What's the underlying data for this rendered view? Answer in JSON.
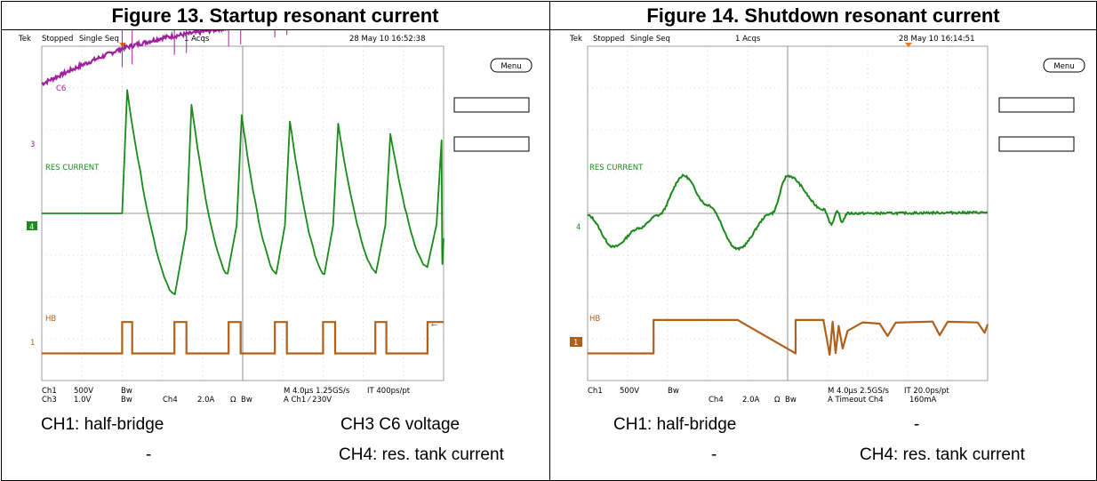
{
  "figures": [
    {
      "title": "Figure 13. Startup resonant current",
      "scope": {
        "brand": "Tek",
        "status": "Stopped",
        "mode": "Single Seq",
        "acqs": "1 Acqs",
        "datetime": "28 May 10 16:52:38",
        "menu_label": "Menu",
        "ch3_label": "C6",
        "ch4_label": "RES CURRENT",
        "ch1_label": "HB",
        "marker_ch3": "3",
        "marker_ch4": "4",
        "marker_ch1": "1",
        "readout": {
          "ch1": "Ch1",
          "ch1_scale": "500V",
          "ch1_bw": "Bw",
          "ch3": "Ch3",
          "ch3_scale": "1.0V",
          "ch3_bw": "Bw",
          "ch4": "Ch4",
          "ch4_scale": "2.0A",
          "ch4_unit": "Ω",
          "ch4_bw": "Bw",
          "timebase": "M 4.0µs 1.25GS/s",
          "interp": "IT 400ps/pt",
          "trigger": "A  Ch1  ⁄  230V"
        }
      },
      "captions": {
        "left_top": "CH1: half-bridge",
        "right_top": "CH3 C6 voltage",
        "left_bottom": "-",
        "right_bottom": "CH4: res. tank current"
      }
    },
    {
      "title": "Figure 14. Shutdown resonant current",
      "scope": {
        "brand": "Tek",
        "status": "Stopped",
        "mode": "Single Seq",
        "acqs": "1 Acqs",
        "datetime": "28 May 10 16:14:51",
        "menu_label": "Menu",
        "ch4_label": "RES CURRENT",
        "ch1_label": "HB",
        "marker_ch4": "4",
        "marker_ch1": "1",
        "readout": {
          "ch1": "Ch1",
          "ch1_scale": "500V",
          "ch1_bw": "Bw",
          "ch4": "Ch4",
          "ch4_scale": "2.0A",
          "ch4_unit": "Ω",
          "ch4_bw": "Bw",
          "timebase": "M 4.0µs 2.5GS/s",
          "interp": "IT 20.0ps/pt",
          "trigger": "A  Timeout  Ch4",
          "trigger_level": "160mA"
        }
      },
      "captions": {
        "left_top": "CH1: half-bridge",
        "right_top": "-",
        "left_bottom": "-",
        "right_bottom": "CH4: res. tank current"
      }
    }
  ],
  "chart_data": [
    {
      "type": "line",
      "title": "Figure 13. Startup resonant current",
      "x_unit": "µs",
      "xlim": [
        0,
        40
      ],
      "x_divisions": 10,
      "y_divisions": 8,
      "grid": true,
      "series": [
        {
          "name": "C6",
          "color": "#a020a0",
          "x": [
            0,
            4,
            8,
            12,
            16,
            20,
            24,
            28,
            32,
            36,
            40
          ],
          "y_div": [
            3.1,
            3.55,
            3.95,
            4.2,
            4.35,
            4.5,
            4.7,
            4.85,
            5.0,
            5.1,
            5.2
          ]
        },
        {
          "name": "RES CURRENT",
          "color": "#1a8a1a",
          "pulse_times": [
            8.0,
            14.4,
            19.4,
            24.2,
            29.0,
            34.2,
            39.3
          ],
          "peaks_div": [
            2.95,
            2.6,
            2.35,
            2.2,
            2.15,
            1.9,
            1.75
          ],
          "troughs_div": [
            -1.95,
            -1.45,
            -1.45,
            -1.45,
            -1.4,
            -1.3,
            -1.2
          ]
        },
        {
          "name": "HB",
          "color": "#b0601a",
          "low_div": -3.35,
          "high_div": -2.6,
          "high_segments": [
            [
              8.0,
              9.0
            ],
            [
              13.2,
              14.4
            ],
            [
              18.6,
              19.8
            ],
            [
              23.2,
              24.4
            ],
            [
              28.0,
              29.2
            ],
            [
              33.2,
              34.3
            ],
            [
              38.4,
              40
            ]
          ]
        }
      ]
    },
    {
      "type": "line",
      "title": "Figure 14. Shutdown resonant current",
      "x_unit": "µs",
      "xlim": [
        0,
        40
      ],
      "x_divisions": 10,
      "y_divisions": 8,
      "grid": true,
      "series": [
        {
          "name": "RES CURRENT",
          "color": "#1a8a1a",
          "x": [
            0,
            2.6,
            5.2,
            7.0,
            9.6,
            12.0,
            15.0,
            18.4,
            20.0,
            23.6,
            24.4,
            25.0,
            25.4,
            26.0,
            40
          ],
          "y_div": [
            -0.05,
            -0.8,
            -0.35,
            -0.05,
            0.9,
            0.2,
            -0.85,
            0.0,
            0.9,
            0.1,
            -0.25,
            0.05,
            -0.2,
            0.0,
            0.02
          ]
        },
        {
          "name": "HB",
          "color": "#b0601a",
          "low_div": -3.35,
          "high_div": -2.55,
          "high_segments": [
            [
              6.6,
              15.0
            ],
            [
              20.8,
              23.6
            ]
          ],
          "ringing": [
            [
              23.6,
              -2.6
            ],
            [
              24.2,
              -3.4
            ],
            [
              24.5,
              -2.6
            ],
            [
              24.8,
              -3.35
            ],
            [
              25.1,
              -2.7
            ],
            [
              25.5,
              -3.25
            ],
            [
              26.0,
              -2.8
            ],
            [
              27.5,
              -2.6
            ],
            [
              29.2,
              -2.65
            ],
            [
              30.0,
              -2.95
            ],
            [
              30.8,
              -2.6
            ],
            [
              34.5,
              -2.6
            ],
            [
              35.2,
              -2.9
            ],
            [
              36.0,
              -2.6
            ],
            [
              39.0,
              -2.6
            ],
            [
              39.7,
              -2.85
            ],
            [
              40,
              -2.65
            ]
          ]
        }
      ]
    }
  ]
}
